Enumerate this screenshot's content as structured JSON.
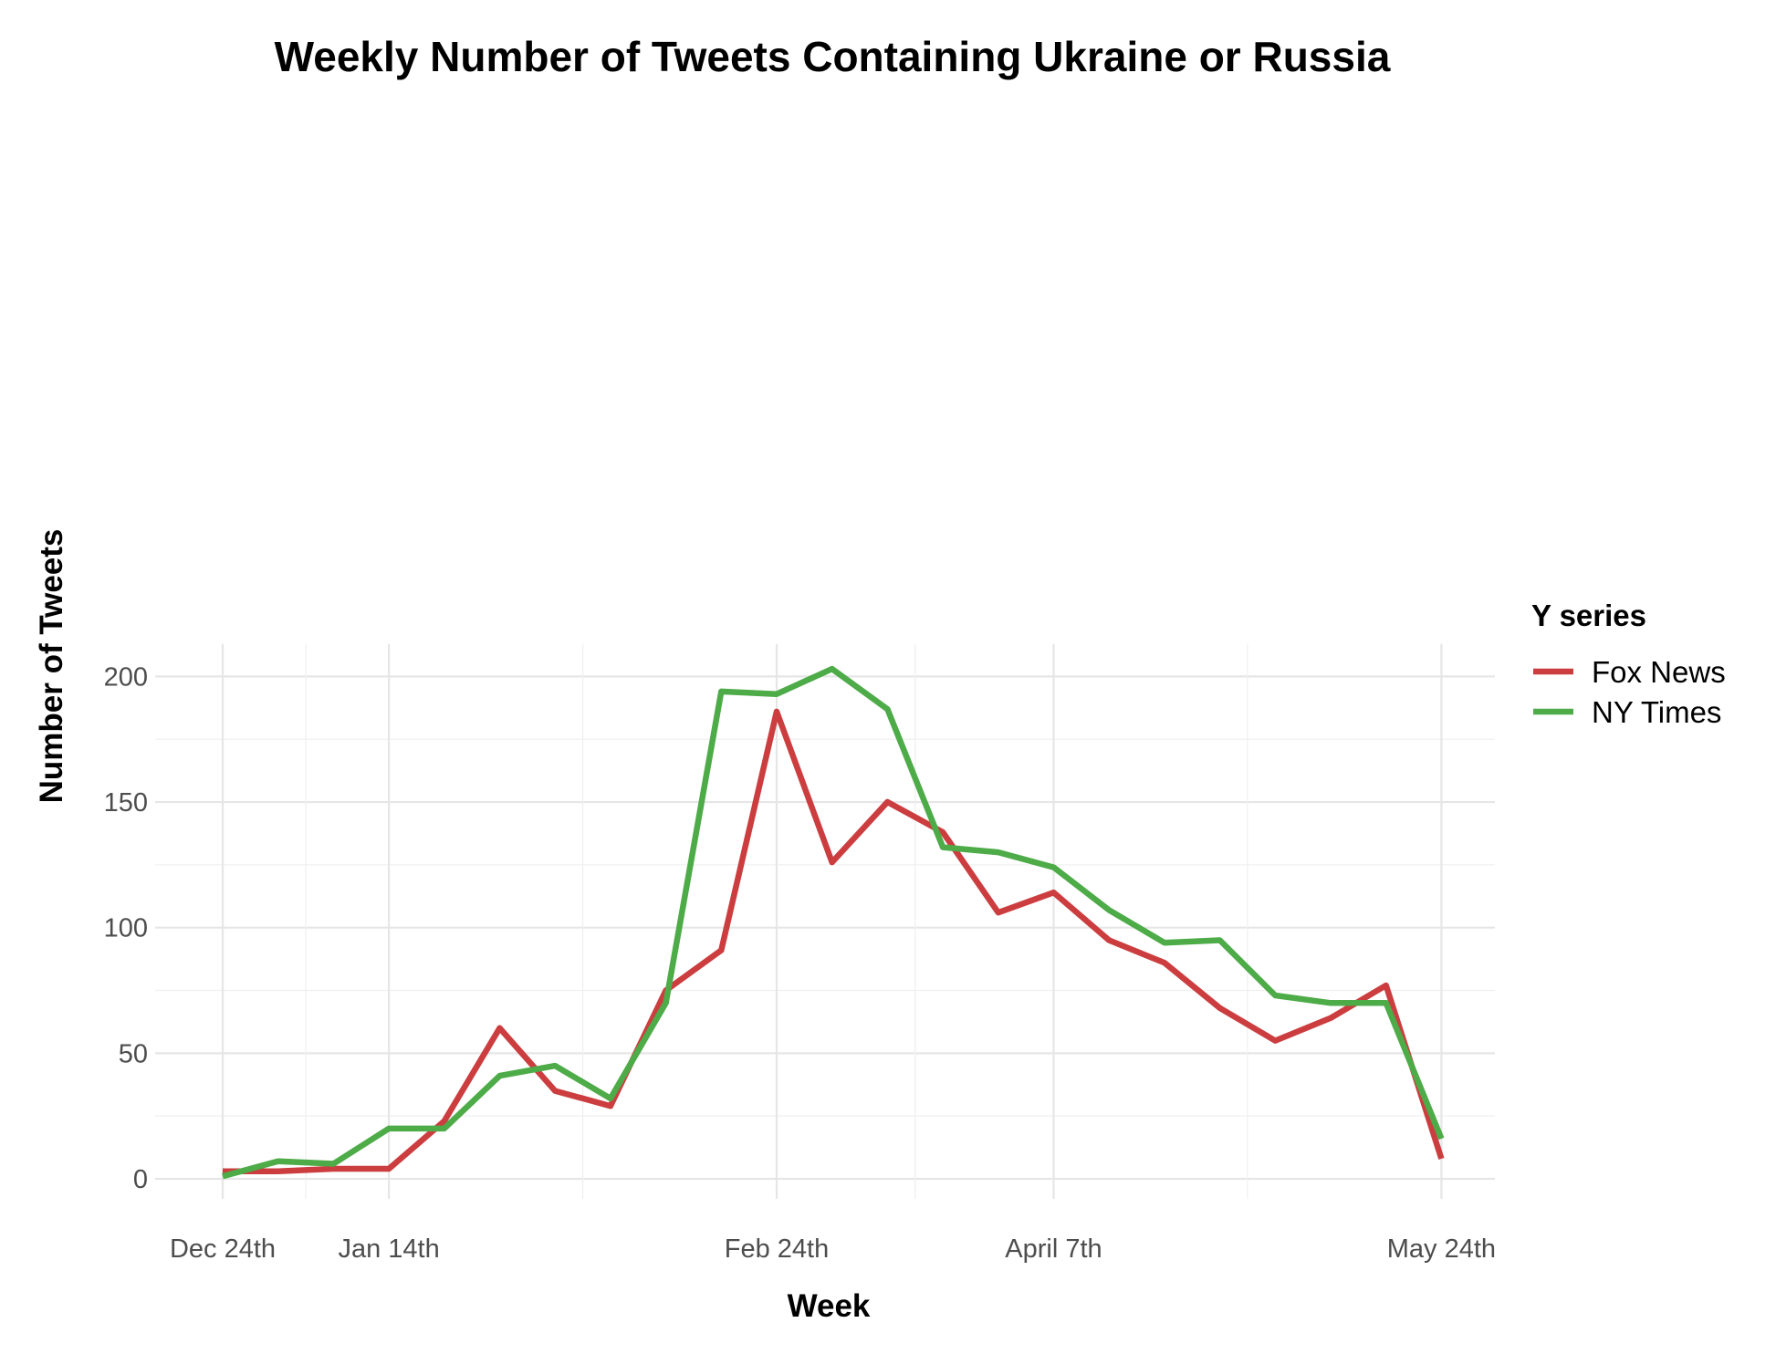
{
  "chart_data": {
    "type": "line",
    "title": "Weekly Number of Tweets Containing Ukraine or Russia",
    "xlabel": "Week",
    "ylabel": "Number of Tweets",
    "x_tick_labels": [
      "Dec 24th",
      "Jan 14th",
      "Feb 24th",
      "April 7th",
      "May 24th"
    ],
    "y_ticks": [
      0,
      50,
      100,
      150,
      200
    ],
    "ylim": [
      -8,
      213
    ],
    "grid": true,
    "legend": {
      "title": "Y series",
      "placement": "right"
    },
    "series": [
      {
        "name": "Fox News",
        "color": "#cc3d3f",
        "values": [
          3,
          3,
          4,
          4,
          23,
          60,
          35,
          29,
          75,
          91,
          186,
          126,
          150,
          138,
          106,
          114,
          95,
          86,
          68,
          55,
          64,
          77,
          8
        ]
      },
      {
        "name": "NY Times",
        "color": "#4dab48",
        "values": [
          1,
          7,
          6,
          20,
          20,
          41,
          45,
          32,
          70,
          194,
          193,
          203,
          187,
          132,
          130,
          124,
          107,
          94,
          95,
          73,
          70,
          70,
          16
        ]
      }
    ]
  }
}
